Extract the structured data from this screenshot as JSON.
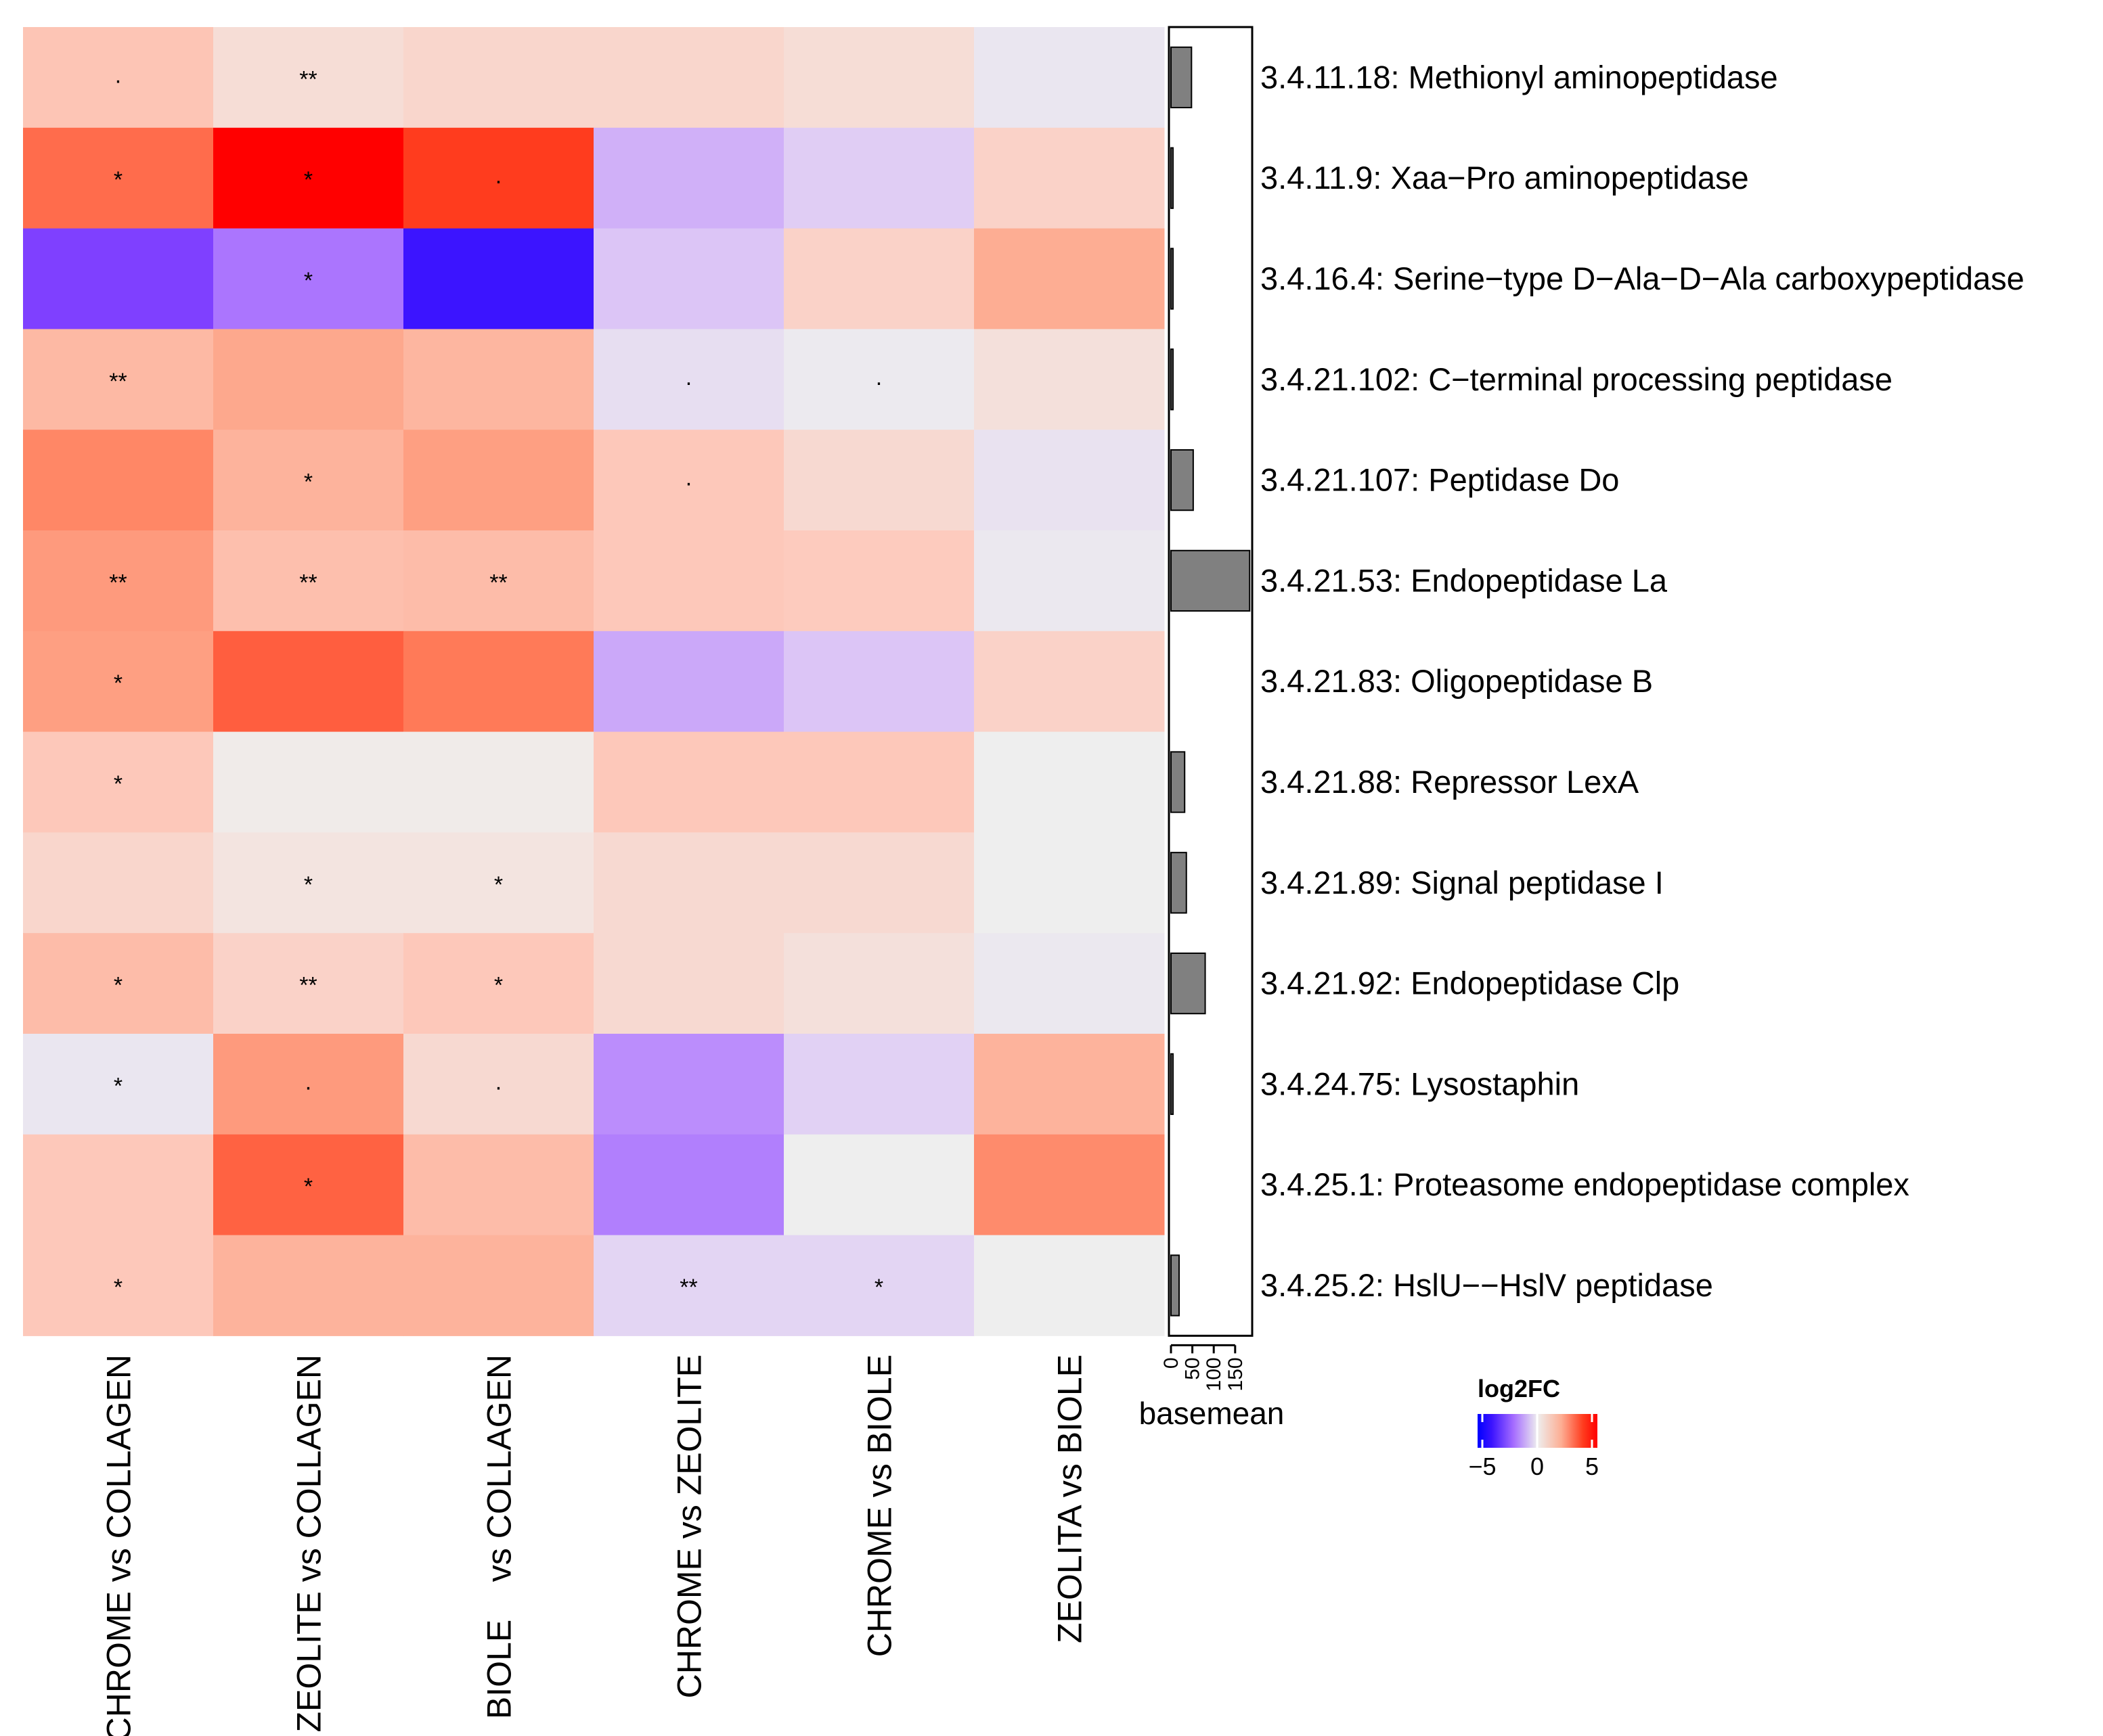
{
  "chart_data": {
    "type": "heatmap",
    "columns": [
      "CHROME vs COLLAGEN",
      "ZEOLITE vs COLLAGEN",
      "BIOLE    vs COLLAGEN",
      "CHROME vs ZEOLITE",
      "CHROME vs BIOLE",
      "ZEOLITA vs BIOLE"
    ],
    "rows": [
      "3.4.11.18: Methionyl aminopeptidase",
      "3.4.11.9: Xaa−Pro aminopeptidase",
      "3.4.16.4: Serine−type D−Ala−D−Ala carboxypeptidase",
      "3.4.21.102: C−terminal processing peptidase",
      "3.4.21.107: Peptidase Do",
      "3.4.21.53: Endopeptidase La",
      "3.4.21.83: Oligopeptidase B",
      "3.4.21.88: Repressor LexA",
      "3.4.21.89: Signal peptidase I",
      "3.4.21.92: Endopeptidase Clp",
      "3.4.24.75: Lysostaphin",
      "3.4.25.1: Proteasome endopeptidase complex",
      "3.4.25.2: HslU−−HslV peptidase"
    ],
    "values": [
      [
        1.2,
        0.5,
        0.7,
        0.7,
        0.5,
        -0.2
      ],
      [
        3.5,
        5.5,
        4.5,
        -1.5,
        -0.8,
        0.8
      ],
      [
        -4.0,
        -2.8,
        -5.5,
        -1.0,
        0.8,
        2.0
      ],
      [
        1.6,
        2.1,
        1.7,
        -0.4,
        -0.1,
        0.4
      ],
      [
        2.8,
        1.8,
        2.3,
        1.1,
        0.6,
        -0.3
      ],
      [
        2.4,
        1.4,
        1.5,
        1.1,
        1.0,
        -0.15
      ],
      [
        2.3,
        3.9,
        3.1,
        -1.7,
        -1.0,
        0.8
      ],
      [
        1.1,
        0.1,
        0.1,
        1.1,
        1.1,
        0.0
      ],
      [
        0.7,
        0.3,
        0.3,
        0.6,
        0.6,
        0.0
      ],
      [
        1.5,
        0.8,
        1.1,
        0.6,
        0.4,
        -0.15
      ],
      [
        -0.2,
        2.4,
        0.6,
        -2.3,
        -0.7,
        1.8
      ],
      [
        1.1,
        3.8,
        1.5,
        -2.6,
        0.0,
        2.7
      ],
      [
        1.1,
        1.8,
        1.8,
        -0.6,
        -0.6,
        0.0
      ]
    ],
    "significance": [
      [
        ".",
        "**",
        "",
        "",
        "",
        ""
      ],
      [
        "*",
        "*",
        ".",
        "",
        "",
        ""
      ],
      [
        "",
        "*",
        "",
        "",
        "",
        ""
      ],
      [
        "**",
        "",
        "",
        ".",
        ".",
        ""
      ],
      [
        "",
        "*",
        "",
        ".",
        "",
        ""
      ],
      [
        "**",
        "**",
        "**",
        "",
        "",
        ""
      ],
      [
        "*",
        "",
        "",
        "",
        "",
        ""
      ],
      [
        "*",
        "",
        "",
        "",
        "",
        ""
      ],
      [
        "",
        "*",
        "*",
        "",
        "",
        ""
      ],
      [
        "*",
        "**",
        "*",
        "",
        "",
        ""
      ],
      [
        "*",
        ".",
        ".",
        "",
        "",
        ""
      ],
      [
        "",
        "*",
        "",
        "",
        "",
        ""
      ],
      [
        "*",
        "",
        "",
        "**",
        "*",
        ""
      ]
    ],
    "colorscale": {
      "title": "log2FC",
      "ticks": [
        "−5",
        "0",
        "5"
      ],
      "tick_values": [
        -5,
        0,
        5
      ],
      "low_color": "#0000ff",
      "mid_color": "#eeeeee",
      "high_color": "#ff0000"
    },
    "basemean": {
      "label": "basemean",
      "ticks": [
        "0",
        "50",
        "100",
        "150"
      ],
      "tick_values": [
        0,
        50,
        100,
        150
      ],
      "values": [
        48,
        3,
        3,
        3,
        52,
        184,
        0,
        32,
        36,
        80,
        3,
        0,
        19
      ],
      "bar_color": "#808080"
    }
  }
}
